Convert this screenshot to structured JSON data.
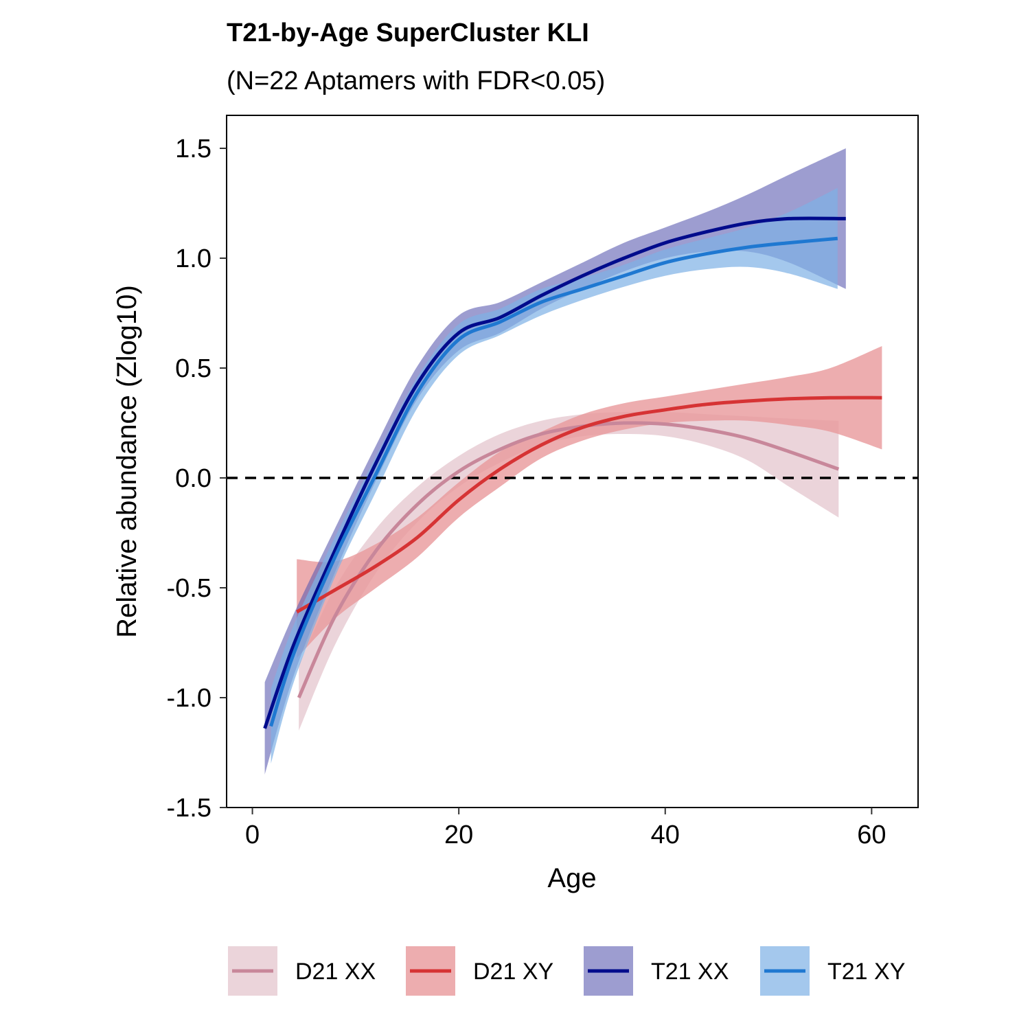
{
  "chart_data": {
    "type": "line",
    "title": "T21-by-Age SuperCluster KLI",
    "subtitle": "(N=22 Aptamers with FDR<0.05)",
    "xlabel": "Age",
    "ylabel": "Relative abundance (Zlog10)",
    "xlim": [
      -2.5,
      64.5
    ],
    "ylim": [
      -1.5,
      1.65
    ],
    "x_ticks": [
      0,
      20,
      40,
      60
    ],
    "x_tick_labels": [
      "0",
      "20",
      "40",
      "60"
    ],
    "y_ticks": [
      -1.5,
      -1.0,
      -0.5,
      0.0,
      0.5,
      1.0,
      1.5
    ],
    "y_tick_labels": [
      "-1.5",
      "-1.0",
      "-0.5",
      "0.0",
      "0.5",
      "1.0",
      "1.5"
    ],
    "reference_line": {
      "y": 0,
      "style": "dashed"
    },
    "grid": false,
    "legend_position": "bottom",
    "series": [
      {
        "name": "D21 XX",
        "line_color": "#c8879a",
        "band_color": "#e8ccd3",
        "band_opacity": 0.85,
        "x": [
          4.5,
          8,
          12,
          16,
          20,
          24,
          28,
          32,
          36,
          40,
          44,
          48,
          52,
          56.8
        ],
        "y": [
          -1.0,
          -0.63,
          -0.33,
          -0.12,
          0.03,
          0.13,
          0.2,
          0.235,
          0.25,
          0.245,
          0.22,
          0.18,
          0.12,
          0.04
        ],
        "lower": [
          -1.15,
          -0.76,
          -0.43,
          -0.2,
          -0.04,
          0.07,
          0.15,
          0.19,
          0.2,
          0.19,
          0.15,
          0.08,
          -0.04,
          -0.18
        ],
        "upper": [
          -0.85,
          -0.5,
          -0.23,
          -0.04,
          0.1,
          0.2,
          0.26,
          0.29,
          0.3,
          0.3,
          0.29,
          0.28,
          0.27,
          0.26
        ]
      },
      {
        "name": "D21 XY",
        "line_color": "#d63334",
        "band_color": "#e8999b",
        "band_opacity": 0.8,
        "x": [
          4.3,
          8,
          12,
          16,
          20,
          24,
          28,
          32,
          36,
          40,
          44,
          48,
          52,
          56,
          61
        ],
        "y": [
          -0.61,
          -0.51,
          -0.4,
          -0.27,
          -0.1,
          0.04,
          0.15,
          0.23,
          0.28,
          0.31,
          0.335,
          0.35,
          0.36,
          0.365,
          0.365
        ],
        "lower": [
          -0.82,
          -0.64,
          -0.5,
          -0.36,
          -0.18,
          -0.04,
          0.09,
          0.17,
          0.22,
          0.25,
          0.26,
          0.26,
          0.24,
          0.21,
          0.13
        ],
        "upper": [
          -0.37,
          -0.38,
          -0.3,
          -0.18,
          -0.02,
          0.12,
          0.21,
          0.29,
          0.34,
          0.37,
          0.4,
          0.43,
          0.46,
          0.5,
          0.6
        ]
      },
      {
        "name": "T21 XX",
        "line_color": "#000b8c",
        "band_color": "#5c5cb0",
        "band_opacity": 0.6,
        "x": [
          1.2,
          4,
          8,
          12,
          16,
          20,
          24,
          28,
          32,
          36,
          40,
          44,
          48,
          52,
          57.5
        ],
        "y": [
          -1.14,
          -0.76,
          -0.33,
          0.07,
          0.43,
          0.66,
          0.73,
          0.83,
          0.92,
          1.0,
          1.07,
          1.12,
          1.16,
          1.18,
          1.18
        ],
        "lower": [
          -1.35,
          -0.9,
          -0.43,
          -0.01,
          0.36,
          0.58,
          0.66,
          0.77,
          0.86,
          0.94,
          1.0,
          1.03,
          1.03,
          0.98,
          0.86
        ],
        "upper": [
          -0.93,
          -0.62,
          -0.23,
          0.15,
          0.51,
          0.74,
          0.8,
          0.89,
          0.98,
          1.07,
          1.14,
          1.21,
          1.29,
          1.38,
          1.5
        ]
      },
      {
        "name": "T21 XY",
        "line_color": "#1f78d1",
        "band_color": "#7eb0e6",
        "band_opacity": 0.7,
        "x": [
          1.8,
          4,
          8,
          12,
          16,
          20,
          24,
          28,
          32,
          36,
          40,
          44,
          48,
          52,
          56.7
        ],
        "y": [
          -1.13,
          -0.8,
          -0.36,
          0.02,
          0.39,
          0.63,
          0.71,
          0.8,
          0.86,
          0.92,
          0.98,
          1.02,
          1.05,
          1.07,
          1.09
        ],
        "lower": [
          -1.3,
          -0.93,
          -0.45,
          -0.06,
          0.32,
          0.56,
          0.65,
          0.74,
          0.81,
          0.87,
          0.92,
          0.95,
          0.96,
          0.93,
          0.86
        ],
        "upper": [
          -0.96,
          -0.67,
          -0.27,
          0.1,
          0.46,
          0.7,
          0.77,
          0.86,
          0.91,
          0.97,
          1.04,
          1.09,
          1.14,
          1.21,
          1.32
        ]
      }
    ]
  }
}
